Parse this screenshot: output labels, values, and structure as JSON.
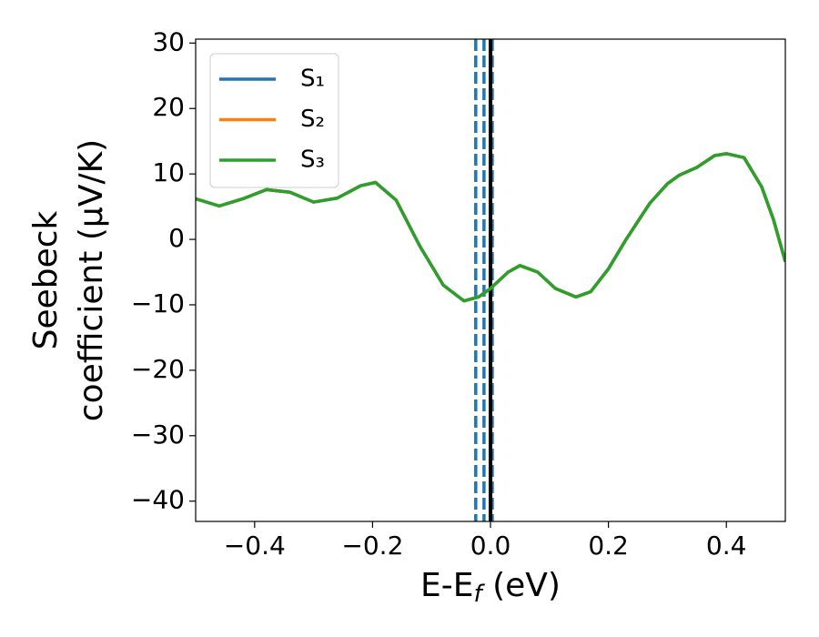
{
  "chart_data": {
    "type": "line",
    "xlabel": [
      "E-E",
      "f",
      " (eV)"
    ],
    "ylabel": [
      "Seebeck",
      "coefficient  (μV/K)"
    ],
    "x": [
      -0.5,
      -0.46,
      -0.42,
      -0.38,
      -0.34,
      -0.3,
      -0.26,
      -0.22,
      -0.195,
      -0.16,
      -0.12,
      -0.08,
      -0.045,
      -0.02,
      0.0,
      0.03,
      0.05,
      0.08,
      0.11,
      0.145,
      0.17,
      0.2,
      0.23,
      0.27,
      0.3,
      0.32,
      0.35,
      0.38,
      0.4,
      0.43,
      0.46,
      0.48,
      0.5
    ],
    "series": [
      {
        "name": "S₁",
        "color": "#1f77b4",
        "values": [
          6.2,
          5.1,
          6.2,
          7.6,
          7.2,
          5.7,
          6.3,
          8.2,
          8.7,
          6.0,
          -1.0,
          -7.0,
          -9.4,
          -8.8,
          -7.5,
          -5.0,
          -4.0,
          -5.0,
          -7.5,
          -8.8,
          -8.0,
          -4.5,
          0.0,
          5.5,
          8.5,
          9.8,
          11.0,
          12.8,
          13.1,
          12.5,
          8.0,
          3.0,
          -3.4
        ]
      },
      {
        "name": "S₂",
        "color": "#ff7f0e",
        "values": [
          6.2,
          5.1,
          6.2,
          7.6,
          7.2,
          5.7,
          6.3,
          8.2,
          8.7,
          6.0,
          -1.0,
          -7.0,
          -9.4,
          -8.8,
          -7.5,
          -5.0,
          -4.0,
          -5.0,
          -7.5,
          -8.8,
          -8.0,
          -4.5,
          0.0,
          5.5,
          8.5,
          9.8,
          11.0,
          12.8,
          13.1,
          12.5,
          8.0,
          3.0,
          -3.4
        ]
      },
      {
        "name": "S₃",
        "color": "#2ca02c",
        "values": [
          6.2,
          5.1,
          6.2,
          7.6,
          7.2,
          5.7,
          6.3,
          8.2,
          8.7,
          6.0,
          -1.0,
          -7.0,
          -9.4,
          -8.8,
          -7.5,
          -5.0,
          -4.0,
          -5.0,
          -7.5,
          -8.8,
          -8.0,
          -4.5,
          0.0,
          5.5,
          8.5,
          9.8,
          11.0,
          12.8,
          13.1,
          12.5,
          8.0,
          3.0,
          -3.4
        ]
      }
    ],
    "vlines": [
      {
        "x": -0.025,
        "color": "#1f77b4",
        "style": "dashed"
      },
      {
        "x": -0.011,
        "color": "#1f77b4",
        "style": "dashed"
      },
      {
        "x": 0.003,
        "color": "#1f77b4",
        "style": "dashed"
      },
      {
        "x": 0.0,
        "color": "#000000",
        "style": "solid"
      }
    ],
    "xlim": [
      -0.5,
      0.5
    ],
    "xticks": [
      {
        "value": -0.4,
        "label": "−0.4"
      },
      {
        "value": -0.2,
        "label": "−0.2"
      },
      {
        "value": 0,
        "label": "0.0"
      },
      0.2,
      0.4
    ],
    "ylim": [
      -43.1,
      30.6
    ],
    "yticks": [
      30,
      20,
      10,
      0,
      {
        "value": -10,
        "label": "−10"
      },
      {
        "value": -20,
        "label": "−20"
      },
      {
        "value": -30,
        "label": "−30"
      },
      {
        "value": -40,
        "label": "−40"
      }
    ],
    "legend": "upper left"
  }
}
